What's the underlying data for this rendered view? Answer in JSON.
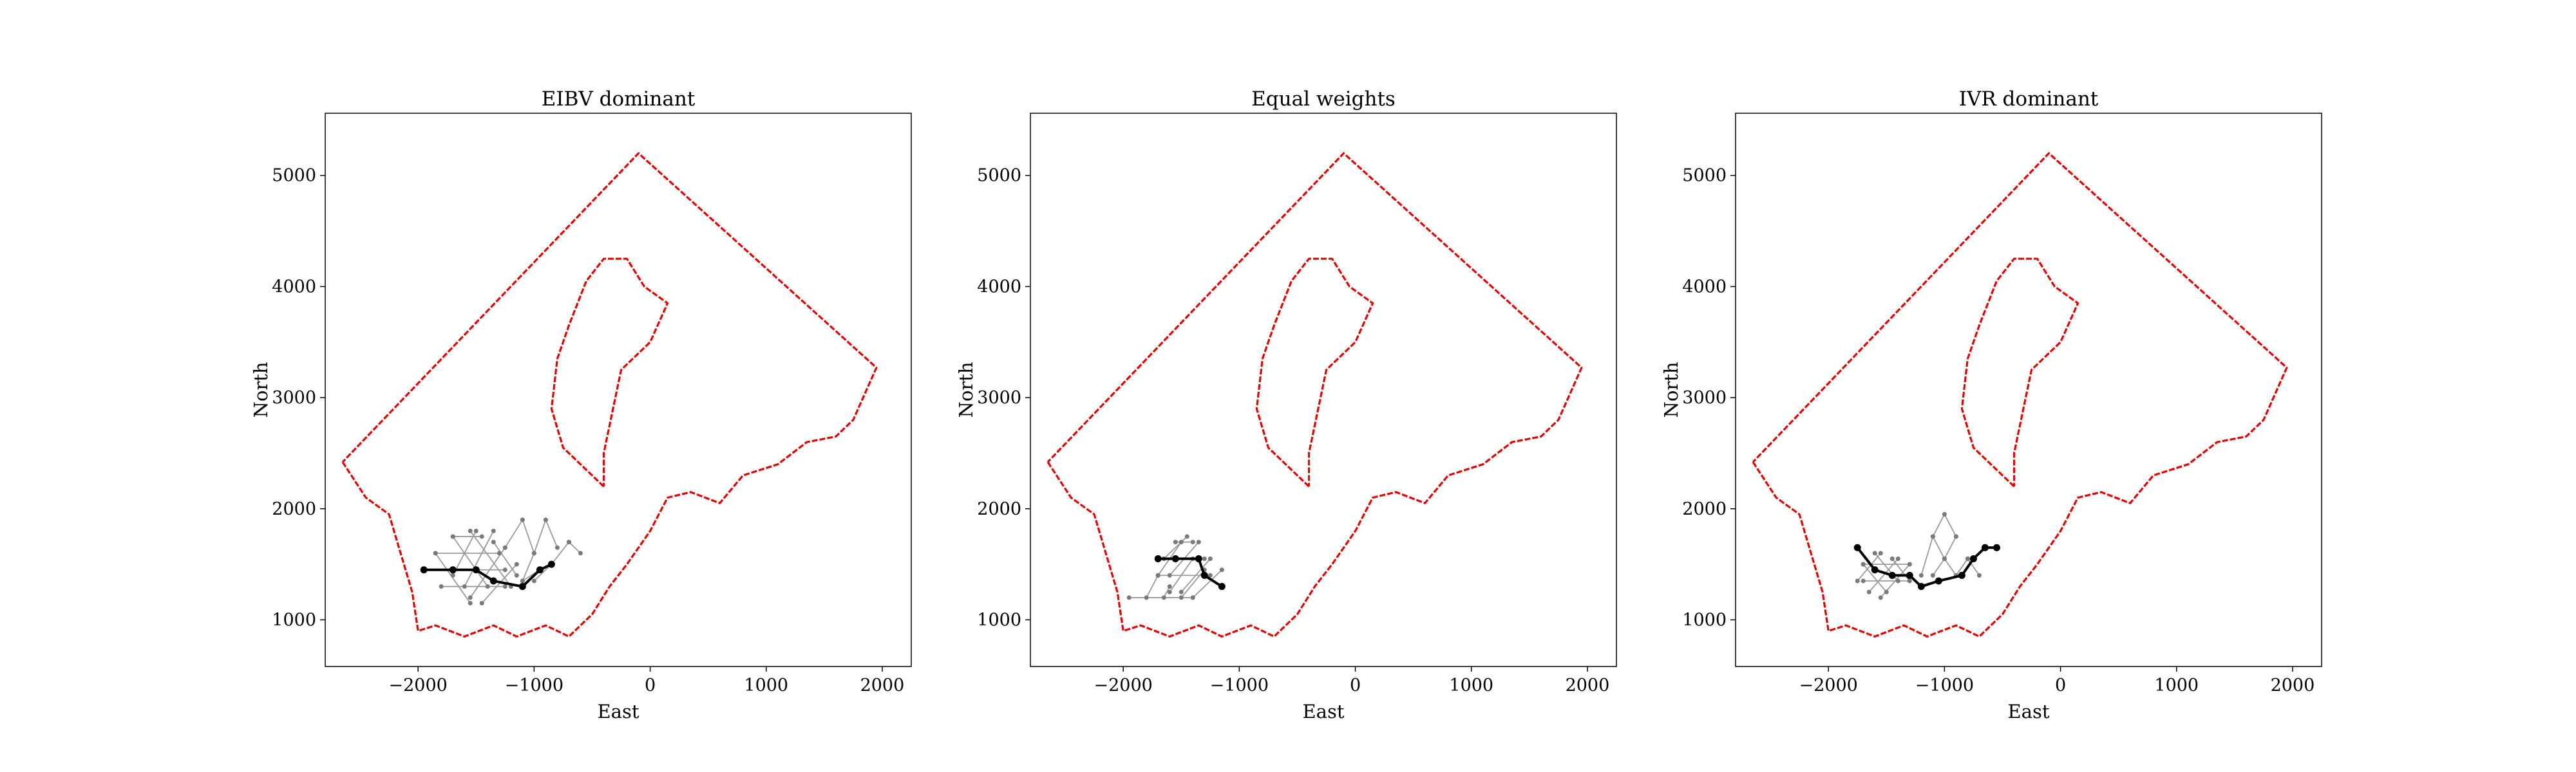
{
  "chart_data": [
    {
      "type": "line",
      "title": "EIBV dominant",
      "xlabel": "East",
      "ylabel": "North",
      "xlim": [
        -2800,
        2250
      ],
      "ylim": [
        580,
        5560
      ],
      "xticks": [
        -2000,
        -1000,
        0,
        1000,
        2000
      ],
      "xtick_labels": [
        "−2000",
        "−1000",
        "0",
        "1000",
        "2000"
      ],
      "yticks": [
        1000,
        2000,
        3000,
        4000,
        5000
      ],
      "ytick_labels": [
        "1000",
        "2000",
        "3000",
        "4000",
        "5000"
      ],
      "grid": false,
      "boundary_color": "#e60000",
      "boundary": [
        [
          -2650,
          2420
        ],
        [
          -2450,
          2100
        ],
        [
          -2250,
          1950
        ],
        [
          -2150,
          1600
        ],
        [
          -2050,
          1250
        ],
        [
          -2000,
          900
        ],
        [
          -1850,
          950
        ],
        [
          -1600,
          850
        ],
        [
          -1350,
          950
        ],
        [
          -1150,
          850
        ],
        [
          -900,
          950
        ],
        [
          -700,
          850
        ],
        [
          -500,
          1050
        ],
        [
          -350,
          1300
        ],
        [
          -200,
          1500
        ],
        [
          0,
          1800
        ],
        [
          150,
          2100
        ],
        [
          350,
          2150
        ],
        [
          600,
          2050
        ],
        [
          800,
          2300
        ],
        [
          1100,
          2400
        ],
        [
          1350,
          2600
        ],
        [
          1600,
          2650
        ],
        [
          1750,
          2800
        ],
        [
          1950,
          3270
        ],
        [
          -100,
          5200
        ],
        [
          -2650,
          2420
        ]
      ],
      "inner_boundary": [
        [
          -400,
          2200
        ],
        [
          -750,
          2550
        ],
        [
          -850,
          2900
        ],
        [
          -800,
          3350
        ],
        [
          -700,
          3650
        ],
        [
          -550,
          4050
        ],
        [
          -400,
          4250
        ],
        [
          -200,
          4250
        ],
        [
          -50,
          4000
        ],
        [
          150,
          3850
        ],
        [
          0,
          3500
        ],
        [
          -250,
          3250
        ],
        [
          -400,
          2500
        ],
        [
          -400,
          2200
        ]
      ],
      "lattice_color": "#9a9a9a",
      "lattice_edges": [
        [
          [
            -1700,
            1400
          ],
          [
            -1500,
            1800
          ]
        ],
        [
          [
            -1600,
            1300
          ],
          [
            -1350,
            1800
          ]
        ],
        [
          [
            -1550,
            1200
          ],
          [
            -1250,
            1650
          ]
        ],
        [
          [
            -1450,
            1150
          ],
          [
            -1150,
            1500
          ]
        ],
        [
          [
            -1850,
            1600
          ],
          [
            -1550,
            1150
          ]
        ],
        [
          [
            -1700,
            1750
          ],
          [
            -1400,
            1300
          ]
        ],
        [
          [
            -1550,
            1800
          ],
          [
            -1200,
            1300
          ]
        ],
        [
          [
            -1350,
            1700
          ],
          [
            -1150,
            1400
          ]
        ],
        [
          [
            -1950,
            1450
          ],
          [
            -1250,
            1450
          ]
        ],
        [
          [
            -1850,
            1600
          ],
          [
            -1300,
            1600
          ]
        ],
        [
          [
            -1700,
            1750
          ],
          [
            -1450,
            1750
          ]
        ],
        [
          [
            -1800,
            1300
          ],
          [
            -1250,
            1300
          ]
        ],
        [
          [
            -1250,
            1650
          ],
          [
            -1100,
            1900
          ]
        ],
        [
          [
            -1100,
            1900
          ],
          [
            -1000,
            1600
          ]
        ],
        [
          [
            -1000,
            1600
          ],
          [
            -900,
            1900
          ]
        ],
        [
          [
            -900,
            1900
          ],
          [
            -800,
            1650
          ]
        ],
        [
          [
            -850,
            1500
          ],
          [
            -700,
            1700
          ]
        ],
        [
          [
            -700,
            1700
          ],
          [
            -600,
            1600
          ]
        ],
        [
          [
            -1000,
            1600
          ],
          [
            -1100,
            1350
          ]
        ],
        [
          [
            -850,
            1500
          ],
          [
            -1000,
            1350
          ]
        ],
        [
          [
            -1100,
            1350
          ],
          [
            -950,
            1450
          ]
        ]
      ],
      "path_color": "#000000",
      "path": [
        [
          -1950,
          1450
        ],
        [
          -1700,
          1450
        ],
        [
          -1500,
          1450
        ],
        [
          -1350,
          1350
        ],
        [
          -1100,
          1300
        ],
        [
          -950,
          1450
        ],
        [
          -850,
          1500
        ]
      ]
    },
    {
      "type": "line",
      "title": "Equal weights",
      "xlabel": "East",
      "ylabel": "North",
      "xlim": [
        -2800,
        2250
      ],
      "ylim": [
        580,
        5560
      ],
      "xticks": [
        -2000,
        -1000,
        0,
        1000,
        2000
      ],
      "xtick_labels": [
        "−2000",
        "−1000",
        "0",
        "1000",
        "2000"
      ],
      "yticks": [
        1000,
        2000,
        3000,
        4000,
        5000
      ],
      "ytick_labels": [
        "1000",
        "2000",
        "3000",
        "4000",
        "5000"
      ],
      "grid": false,
      "boundary_color": "#e60000",
      "boundary": [
        [
          -2650,
          2420
        ],
        [
          -2450,
          2100
        ],
        [
          -2250,
          1950
        ],
        [
          -2150,
          1600
        ],
        [
          -2050,
          1250
        ],
        [
          -2000,
          900
        ],
        [
          -1850,
          950
        ],
        [
          -1600,
          850
        ],
        [
          -1350,
          950
        ],
        [
          -1150,
          850
        ],
        [
          -900,
          950
        ],
        [
          -700,
          850
        ],
        [
          -500,
          1050
        ],
        [
          -350,
          1300
        ],
        [
          -200,
          1500
        ],
        [
          0,
          1800
        ],
        [
          150,
          2100
        ],
        [
          350,
          2150
        ],
        [
          600,
          2050
        ],
        [
          800,
          2300
        ],
        [
          1100,
          2400
        ],
        [
          1350,
          2600
        ],
        [
          1600,
          2650
        ],
        [
          1750,
          2800
        ],
        [
          1950,
          3270
        ],
        [
          -100,
          5200
        ],
        [
          -2650,
          2420
        ]
      ],
      "inner_boundary": [
        [
          -400,
          2200
        ],
        [
          -750,
          2550
        ],
        [
          -850,
          2900
        ],
        [
          -800,
          3350
        ],
        [
          -700,
          3650
        ],
        [
          -550,
          4050
        ],
        [
          -400,
          4250
        ],
        [
          -200,
          4250
        ],
        [
          -50,
          4000
        ],
        [
          150,
          3850
        ],
        [
          0,
          3500
        ],
        [
          -250,
          3250
        ],
        [
          -400,
          2500
        ],
        [
          -400,
          2200
        ]
      ],
      "lattice_color": "#9a9a9a",
      "lattice_edges": [
        [
          [
            -1650,
            1550
          ],
          [
            -1450,
            1750
          ]
        ],
        [
          [
            -1600,
            1400
          ],
          [
            -1350,
            1700
          ]
        ],
        [
          [
            -1500,
            1250
          ],
          [
            -1250,
            1550
          ]
        ],
        [
          [
            -1400,
            1200
          ],
          [
            -1150,
            1450
          ]
        ],
        [
          [
            -1700,
            1400
          ],
          [
            -1500,
            1700
          ]
        ],
        [
          [
            -1600,
            1250
          ],
          [
            -1400,
            1550
          ]
        ],
        [
          [
            -1500,
            1200
          ],
          [
            -1300,
            1450
          ]
        ],
        [
          [
            -1650,
            1550
          ],
          [
            -1300,
            1550
          ]
        ],
        [
          [
            -1700,
            1400
          ],
          [
            -1250,
            1400
          ]
        ],
        [
          [
            -1550,
            1700
          ],
          [
            -1400,
            1700
          ]
        ],
        [
          [
            -1950,
            1200
          ],
          [
            -1400,
            1200
          ]
        ],
        [
          [
            -1800,
            1200
          ],
          [
            -1700,
            1400
          ]
        ],
        [
          [
            -1650,
            1200
          ],
          [
            -1600,
            1300
          ]
        ]
      ],
      "path_color": "#000000",
      "path": [
        [
          -1700,
          1550
        ],
        [
          -1550,
          1550
        ],
        [
          -1350,
          1550
        ],
        [
          -1300,
          1400
        ],
        [
          -1150,
          1300
        ]
      ]
    },
    {
      "type": "line",
      "title": "IVR dominant",
      "xlabel": "East",
      "ylabel": "North",
      "xlim": [
        -2800,
        2250
      ],
      "ylim": [
        580,
        5560
      ],
      "xticks": [
        -2000,
        -1000,
        0,
        1000,
        2000
      ],
      "xtick_labels": [
        "−2000",
        "−1000",
        "0",
        "1000",
        "2000"
      ],
      "yticks": [
        1000,
        2000,
        3000,
        4000,
        5000
      ],
      "ytick_labels": [
        "1000",
        "2000",
        "3000",
        "4000",
        "5000"
      ],
      "grid": false,
      "boundary_color": "#e60000",
      "boundary": [
        [
          -2650,
          2420
        ],
        [
          -2450,
          2100
        ],
        [
          -2250,
          1950
        ],
        [
          -2150,
          1600
        ],
        [
          -2050,
          1250
        ],
        [
          -2000,
          900
        ],
        [
          -1850,
          950
        ],
        [
          -1600,
          850
        ],
        [
          -1350,
          950
        ],
        [
          -1150,
          850
        ],
        [
          -900,
          950
        ],
        [
          -700,
          850
        ],
        [
          -500,
          1050
        ],
        [
          -350,
          1300
        ],
        [
          -200,
          1500
        ],
        [
          0,
          1800
        ],
        [
          150,
          2100
        ],
        [
          350,
          2150
        ],
        [
          600,
          2050
        ],
        [
          800,
          2300
        ],
        [
          1100,
          2400
        ],
        [
          1350,
          2600
        ],
        [
          1600,
          2650
        ],
        [
          1750,
          2800
        ],
        [
          1950,
          3270
        ],
        [
          -100,
          5200
        ],
        [
          -2650,
          2420
        ]
      ],
      "inner_boundary": [
        [
          -400,
          2200
        ],
        [
          -750,
          2550
        ],
        [
          -850,
          2900
        ],
        [
          -800,
          3350
        ],
        [
          -700,
          3650
        ],
        [
          -550,
          4050
        ],
        [
          -400,
          4250
        ],
        [
          -200,
          4250
        ],
        [
          -50,
          4000
        ],
        [
          150,
          3850
        ],
        [
          0,
          3500
        ],
        [
          -250,
          3250
        ],
        [
          -400,
          2500
        ],
        [
          -400,
          2200
        ]
      ],
      "lattice_color": "#9a9a9a",
      "lattice_edges": [
        [
          [
            -1750,
            1350
          ],
          [
            -1550,
            1600
          ]
        ],
        [
          [
            -1650,
            1250
          ],
          [
            -1400,
            1550
          ]
        ],
        [
          [
            -1550,
            1200
          ],
          [
            -1300,
            1500
          ]
        ],
        [
          [
            -1700,
            1500
          ],
          [
            -1500,
            1250
          ]
        ],
        [
          [
            -1600,
            1600
          ],
          [
            -1400,
            1350
          ]
        ],
        [
          [
            -1450,
            1550
          ],
          [
            -1300,
            1350
          ]
        ],
        [
          [
            -1700,
            1350
          ],
          [
            -1300,
            1350
          ]
        ],
        [
          [
            -1700,
            1500
          ],
          [
            -1300,
            1500
          ]
        ],
        [
          [
            -1200,
            1400
          ],
          [
            -1100,
            1750
          ]
        ],
        [
          [
            -1100,
            1750
          ],
          [
            -1000,
            1950
          ]
        ],
        [
          [
            -1000,
            1950
          ],
          [
            -900,
            1750
          ]
        ],
        [
          [
            -900,
            1750
          ],
          [
            -1000,
            1550
          ]
        ],
        [
          [
            -1000,
            1550
          ],
          [
            -1100,
            1750
          ]
        ],
        [
          [
            -1000,
            1550
          ],
          [
            -900,
            1400
          ]
        ],
        [
          [
            -900,
            1400
          ],
          [
            -800,
            1550
          ]
        ],
        [
          [
            -800,
            1550
          ],
          [
            -700,
            1400
          ]
        ],
        [
          [
            -1100,
            1400
          ],
          [
            -1000,
            1550
          ]
        ]
      ],
      "path_color": "#000000",
      "path": [
        [
          -1750,
          1650
        ],
        [
          -1600,
          1450
        ],
        [
          -1450,
          1400
        ],
        [
          -1300,
          1400
        ],
        [
          -1200,
          1300
        ],
        [
          -1050,
          1350
        ],
        [
          -850,
          1400
        ],
        [
          -750,
          1550
        ],
        [
          -650,
          1650
        ],
        [
          -550,
          1650
        ]
      ]
    }
  ]
}
